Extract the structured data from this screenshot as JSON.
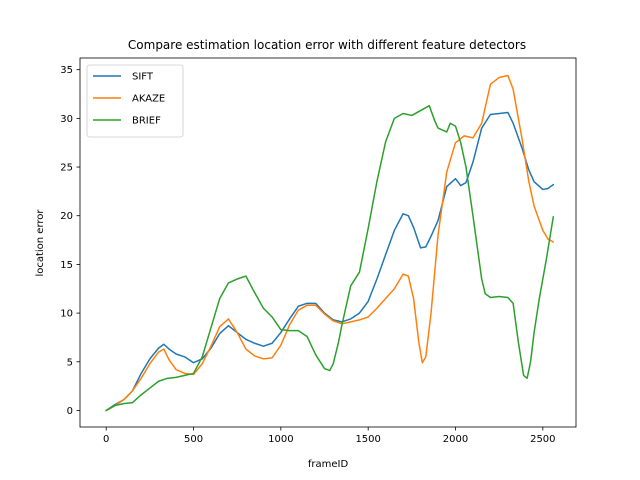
{
  "chart_data": {
    "type": "line",
    "title": "Compare estimation location error with different feature detectors",
    "xlabel": "frameID",
    "ylabel": "location error",
    "xlim": [
      -150,
      2690
    ],
    "ylim": [
      -1.7,
      36.2
    ],
    "xticks": [
      0,
      500,
      1000,
      1500,
      2000,
      2500
    ],
    "yticks": [
      0,
      5,
      10,
      15,
      20,
      25,
      30,
      35
    ],
    "grid": false,
    "legend": {
      "placement": "top-left",
      "entries": [
        "SIFT",
        "AKAZE",
        "BRIEF"
      ]
    },
    "series": [
      {
        "name": "SIFT",
        "color": "#1f77b4",
        "x": [
          0,
          50,
          100,
          150,
          200,
          250,
          300,
          330,
          360,
          400,
          450,
          500,
          550,
          600,
          650,
          700,
          750,
          800,
          850,
          900,
          950,
          1000,
          1050,
          1100,
          1150,
          1200,
          1250,
          1300,
          1350,
          1400,
          1450,
          1500,
          1550,
          1600,
          1650,
          1700,
          1730,
          1760,
          1800,
          1830,
          1860,
          1900,
          1950,
          2000,
          2030,
          2060,
          2100,
          2150,
          2200,
          2250,
          2300,
          2330,
          2380,
          2420,
          2450,
          2500,
          2530,
          2560
        ],
        "y": [
          0,
          0.6,
          1.1,
          2.0,
          3.8,
          5.3,
          6.4,
          6.8,
          6.3,
          5.8,
          5.5,
          4.9,
          5.3,
          6.4,
          7.9,
          8.7,
          8.0,
          7.3,
          6.9,
          6.6,
          6.9,
          8.0,
          9.4,
          10.7,
          11.0,
          11.0,
          10.0,
          9.3,
          9.1,
          9.4,
          10.0,
          11.2,
          13.5,
          16.0,
          18.5,
          20.2,
          20.0,
          18.8,
          16.7,
          16.8,
          17.9,
          19.5,
          23.0,
          23.8,
          23.1,
          23.4,
          25.5,
          29.0,
          30.4,
          30.5,
          30.6,
          29.5,
          27.0,
          24.7,
          23.5,
          22.7,
          22.8,
          23.2
        ]
      },
      {
        "name": "AKAZE",
        "color": "#ff7f0e",
        "x": [
          0,
          50,
          100,
          150,
          200,
          250,
          300,
          330,
          360,
          400,
          450,
          500,
          550,
          600,
          650,
          700,
          750,
          800,
          850,
          900,
          950,
          1000,
          1050,
          1100,
          1150,
          1200,
          1250,
          1300,
          1350,
          1400,
          1450,
          1500,
          1550,
          1600,
          1650,
          1700,
          1730,
          1760,
          1790,
          1810,
          1830,
          1860,
          1900,
          1950,
          2000,
          2050,
          2100,
          2150,
          2200,
          2250,
          2300,
          2330,
          2380,
          2420,
          2450,
          2500,
          2530,
          2560
        ],
        "y": [
          0,
          0.5,
          1.1,
          2.0,
          3.3,
          4.8,
          6.0,
          6.3,
          5.2,
          4.2,
          3.8,
          3.7,
          4.8,
          6.6,
          8.6,
          9.4,
          8.0,
          6.3,
          5.6,
          5.3,
          5.4,
          6.7,
          8.8,
          10.3,
          10.8,
          10.8,
          9.9,
          9.2,
          8.9,
          9.1,
          9.3,
          9.6,
          10.5,
          11.5,
          12.5,
          14.0,
          13.8,
          11.5,
          7.0,
          4.9,
          5.5,
          10.0,
          18.0,
          24.5,
          27.5,
          28.2,
          28.0,
          29.5,
          33.5,
          34.2,
          34.4,
          33.0,
          28.0,
          23.5,
          21.0,
          18.5,
          17.6,
          17.3
        ]
      },
      {
        "name": "BRIEF",
        "color": "#2ca02c",
        "x": [
          0,
          50,
          100,
          150,
          200,
          250,
          300,
          350,
          400,
          450,
          500,
          550,
          600,
          650,
          700,
          750,
          800,
          850,
          900,
          950,
          1000,
          1050,
          1100,
          1150,
          1200,
          1250,
          1280,
          1300,
          1330,
          1350,
          1400,
          1450,
          1500,
          1550,
          1600,
          1650,
          1700,
          1750,
          1800,
          1850,
          1880,
          1900,
          1950,
          1970,
          2000,
          2030,
          2060,
          2100,
          2150,
          2170,
          2200,
          2250,
          2300,
          2330,
          2360,
          2390,
          2410,
          2430,
          2450,
          2480,
          2520,
          2560
        ],
        "y": [
          0,
          0.5,
          0.7,
          0.8,
          1.6,
          2.3,
          3.0,
          3.3,
          3.4,
          3.6,
          3.8,
          5.5,
          8.5,
          11.5,
          13.1,
          13.5,
          13.8,
          12.1,
          10.5,
          9.6,
          8.3,
          8.2,
          8.2,
          7.6,
          5.7,
          4.3,
          4.1,
          4.8,
          7.0,
          8.8,
          12.8,
          14.2,
          18.7,
          23.5,
          27.6,
          30.0,
          30.5,
          30.3,
          30.8,
          31.3,
          29.8,
          29.0,
          28.6,
          29.5,
          29.2,
          27.5,
          25.0,
          20.0,
          13.5,
          12.0,
          11.6,
          11.7,
          11.6,
          11.0,
          7.0,
          3.6,
          3.3,
          5.0,
          8.0,
          11.5,
          15.5,
          19.9
        ]
      }
    ]
  }
}
